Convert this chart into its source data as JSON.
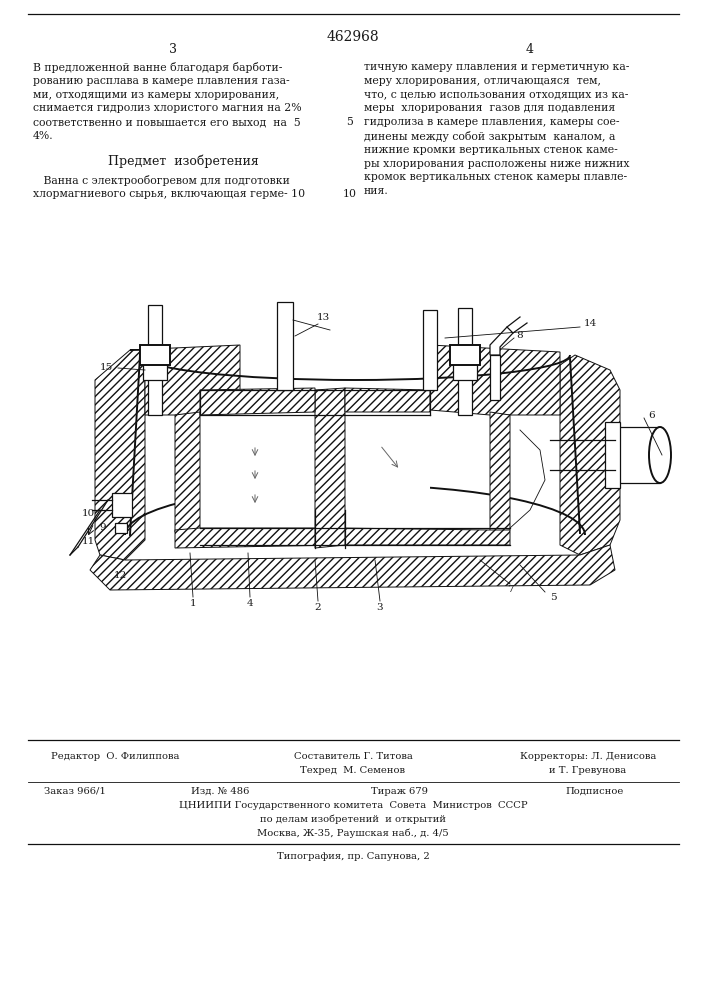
{
  "patent_number": "462968",
  "page_left": "3",
  "page_right": "4",
  "bg_color": "#ffffff",
  "text_color": "#1a1a1a",
  "hatch_color": "#555555",
  "line_color": "#111111",
  "col1_para1": [
    "В предложенной ванне благодаря барботи-",
    "рованию расплава в камере плавления газа-",
    "ми, отходящими из камеры хлорирования,",
    "снимается гидролиз хлористого магния на 2%",
    "соответственно и повышается его выход  на  5",
    "4%."
  ],
  "subject_heading": "Предмет  изобретения",
  "col1_claim": [
    "   Ванна с электрообогревом для подготовки",
    "хлормагниевого сырья, включающая герме- 10"
  ],
  "col2_lines": [
    "тичную камеру плавления и герметичную ка-",
    "меру хлорирования, отличающаяся  тем,",
    "что, с целью использования отходящих из ка-",
    "меры  хлорирования  газов для подавления",
    "гидролиза в камере плавления, камеры сое-",
    "динены между собой закрытым  каналом, а",
    "нижние кромки вертикальных стенок каме-",
    "ры хлорирования расположены ниже нижних",
    "кромок вертикальных стенок камеры плавле-",
    "ния."
  ],
  "footer_editor": "Редактор  О. Филиппова",
  "footer_composer": "Составитель Г. Титова",
  "footer_techred": "Техред  М. Семенов",
  "footer_corr1": "Корректоры: Л. Денисова",
  "footer_corr2": "и Т. Гревунова",
  "footer_order": "Заказ 966/1",
  "footer_pub": "Изд. № 486",
  "footer_tirazh": "Тираж 679",
  "footer_podpisnoe": "Подписное",
  "footer_org1": "ЦНИИПИ Государственного комитета  Совета  Министров  СССР",
  "footer_org2": "по делам изобретений  и открытий",
  "footer_address": "Москва, Ж-35, Раушская наб., д. 4/5",
  "footer_typography": "Типография, пр. Сапунова, 2"
}
